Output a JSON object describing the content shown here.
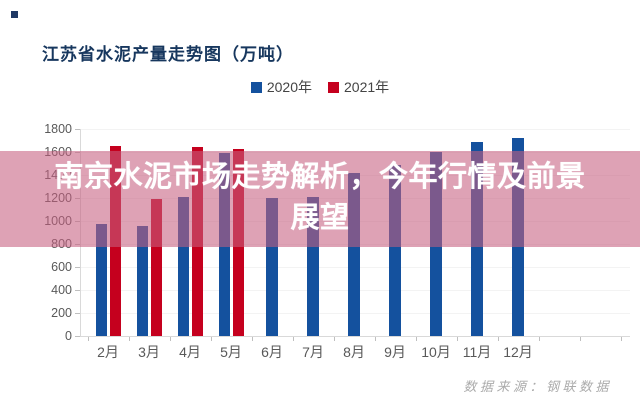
{
  "brand": {
    "square_color": "#1F3864"
  },
  "chart_data": {
    "type": "bar",
    "title": "江苏省水泥产量走势图（万吨）",
    "title_color": "#17375E",
    "categories": [
      "2月",
      "3月",
      "4月",
      "5月",
      "6月",
      "7月",
      "8月",
      "9月",
      "10月",
      "11月",
      "12月"
    ],
    "series": [
      {
        "name": "2020年",
        "color": "#14519E",
        "values": [
          970,
          960,
          1210,
          1590,
          1200,
          1210,
          1420,
          1490,
          1600,
          1690,
          1720
        ]
      },
      {
        "name": "2021年",
        "color": "#C5001E",
        "values": [
          1650,
          1190,
          1640,
          1630,
          null,
          null,
          null,
          null,
          null,
          null,
          null
        ]
      }
    ],
    "xlabel": "",
    "ylabel": "",
    "ylim": [
      0,
      1800
    ],
    "yticks": [
      0,
      200,
      400,
      600,
      800,
      1000,
      1200,
      1400,
      1600,
      1800
    ],
    "grid": "faint-horizontal",
    "legend_position": "top-center",
    "axis_text_color": "#595959"
  },
  "overlay": {
    "line1": "南京水泥市场走势解析，今年行情及前景",
    "line2": "展望",
    "bg_color": "rgba(199,95,128,0.58)",
    "text_color": "#FFFFFF"
  },
  "watermark": {
    "text": "数据来源：钢联数据",
    "color": "#ABABAB"
  }
}
